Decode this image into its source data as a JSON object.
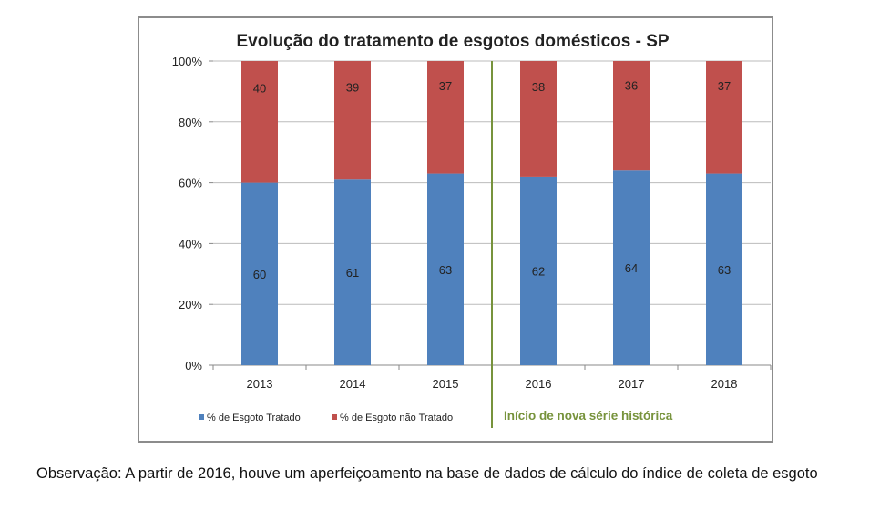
{
  "chart_data": {
    "type": "bar",
    "stacked": true,
    "title": "Evolução do tratamento de esgotos domésticos - SP",
    "categories": [
      "2013",
      "2014",
      "2015",
      "2016",
      "2017",
      "2018"
    ],
    "series": [
      {
        "name": "% de Esgoto Tratado",
        "values": [
          60,
          61,
          63,
          62,
          64,
          63
        ],
        "color": "#4f81bd"
      },
      {
        "name": "% de Esgoto não Tratado",
        "values": [
          40,
          39,
          37,
          38,
          36,
          37
        ],
        "color": "#c0504d"
      }
    ],
    "ylim": [
      0,
      100
    ],
    "yticks": [
      "0%",
      "20%",
      "40%",
      "60%",
      "80%",
      "100%"
    ],
    "grid": true,
    "legend": "bottom-left",
    "annotation": {
      "text": "Início de nova série histórica",
      "color": "#77933c",
      "between": [
        "2015",
        "2016"
      ]
    }
  },
  "note": "Observação: A partir de 2016, houve um aperfeiçoamento na base de dados de cálculo do índice de coleta de esgoto"
}
